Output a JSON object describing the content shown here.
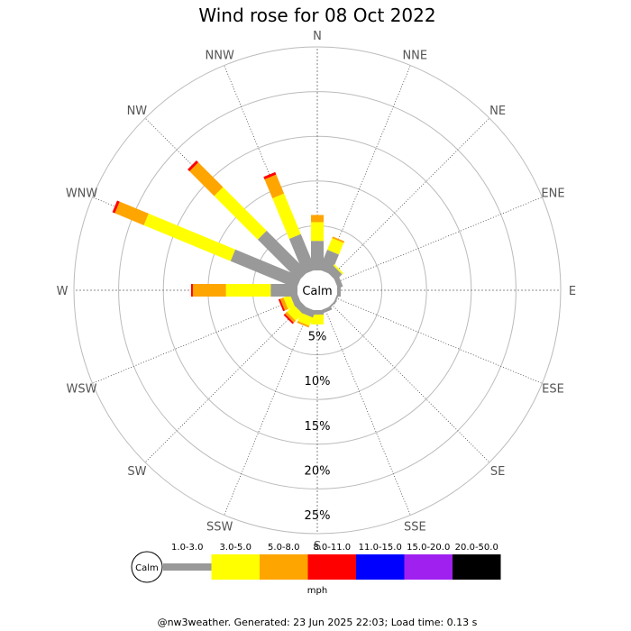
{
  "chart_data": {
    "type": "wind-rose",
    "title": "Wind rose for 08 Oct 2022",
    "center_label": "Calm",
    "directions": [
      "N",
      "NNE",
      "NE",
      "ENE",
      "E",
      "ESE",
      "SE",
      "SSE",
      "S",
      "SSW",
      "SW",
      "WSW",
      "W",
      "WNW",
      "NW",
      "NNW"
    ],
    "ring_labels": [
      "5%",
      "10%",
      "15%",
      "20%",
      "25%"
    ],
    "rings": [
      5,
      10,
      15,
      20,
      25
    ],
    "max_percent": 25,
    "speed_unit": "mph",
    "speed_bins": [
      {
        "label": "1.0-3.0",
        "color": "#999999"
      },
      {
        "label": "3.0-5.0",
        "color": "#ffff00"
      },
      {
        "label": "5.0-8.0",
        "color": "#ffa500"
      },
      {
        "label": "8.0-11.0",
        "color": "#ff0000"
      },
      {
        "label": "11.0-15.0",
        "color": "#0000ff"
      },
      {
        "label": "15.0-20.0",
        "color": "#a020f0"
      },
      {
        "label": "20.0-50.0",
        "color": "#000000"
      }
    ],
    "cumulative_percent": {
      "N": [
        3.3,
        5.4,
        6.2
      ],
      "NNE": [
        2.4,
        3.8,
        4.0
      ],
      "NE": [
        1.0,
        1.2
      ],
      "ENE": [
        0.6
      ],
      "E": [
        0.4
      ],
      "ESE": [
        0.2
      ],
      "SE": [
        0.2
      ],
      "SSE": [
        0.4
      ],
      "S": [
        0.5,
        1.6
      ],
      "SSW": [
        0.8,
        1.8,
        2.0
      ],
      "SW": [
        0.8,
        1.9,
        2.2,
        2.4
      ],
      "WSW": [
        0.8,
        1.6,
        2.0,
        2.2
      ],
      "W": [
        3.0,
        8.0,
        11.7,
        11.9
      ],
      "WNW": [
        8.0,
        18.5,
        22.0,
        22.3
      ],
      "NW": [
        6.5,
        13.4,
        17.3,
        17.6
      ],
      "NNW": [
        4.3,
        9.2,
        11.5,
        11.8
      ]
    },
    "grid": true
  },
  "legend": {
    "calm_label": "Calm",
    "unit_label": "mph"
  },
  "footer": "@nw3weather.  Generated: 23 Jun 2025 22:03; Load time: 0.13 s"
}
